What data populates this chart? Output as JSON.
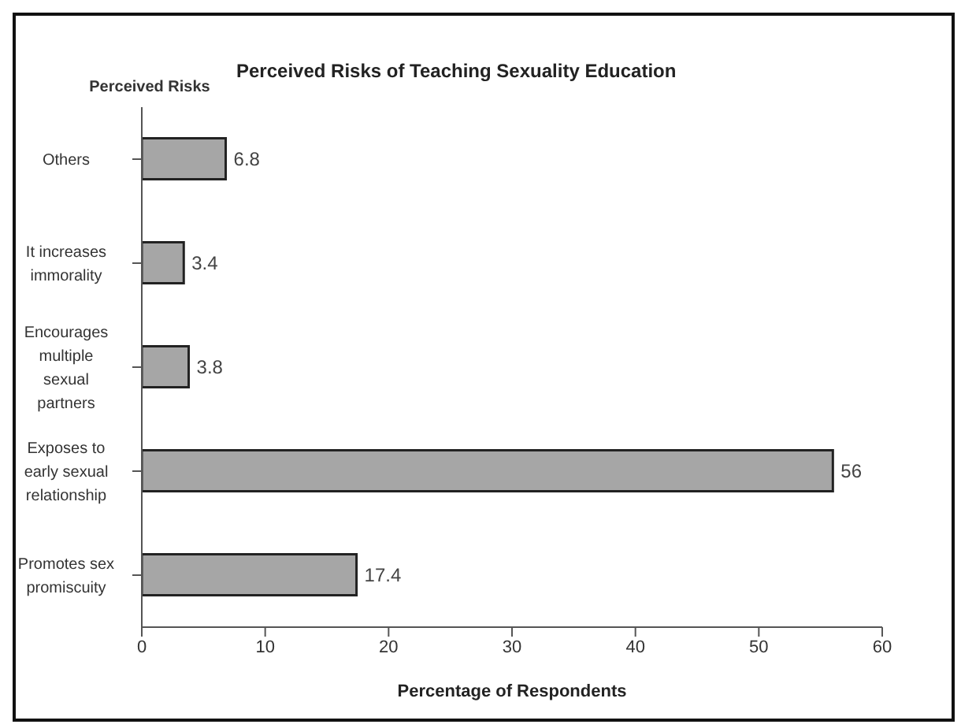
{
  "chart_data": {
    "type": "bar",
    "orientation": "horizontal",
    "title": "Perceived Risks of Teaching Sexuality Education",
    "xlabel": "Percentage of Respondents",
    "ylabel": "Perceived Risks",
    "categories": [
      "Others",
      "It increases immorality",
      "Encourages multiple sexual partners",
      "Exposes to early sexual relationship",
      "Promotes sex promiscuity"
    ],
    "values": [
      6.8,
      3.4,
      3.8,
      56,
      17.4
    ],
    "color": "#a6a6a6",
    "data_labels": true,
    "xlim": [
      0,
      60
    ],
    "xticks": [
      0,
      10,
      20,
      30,
      40,
      50,
      60
    ]
  }
}
